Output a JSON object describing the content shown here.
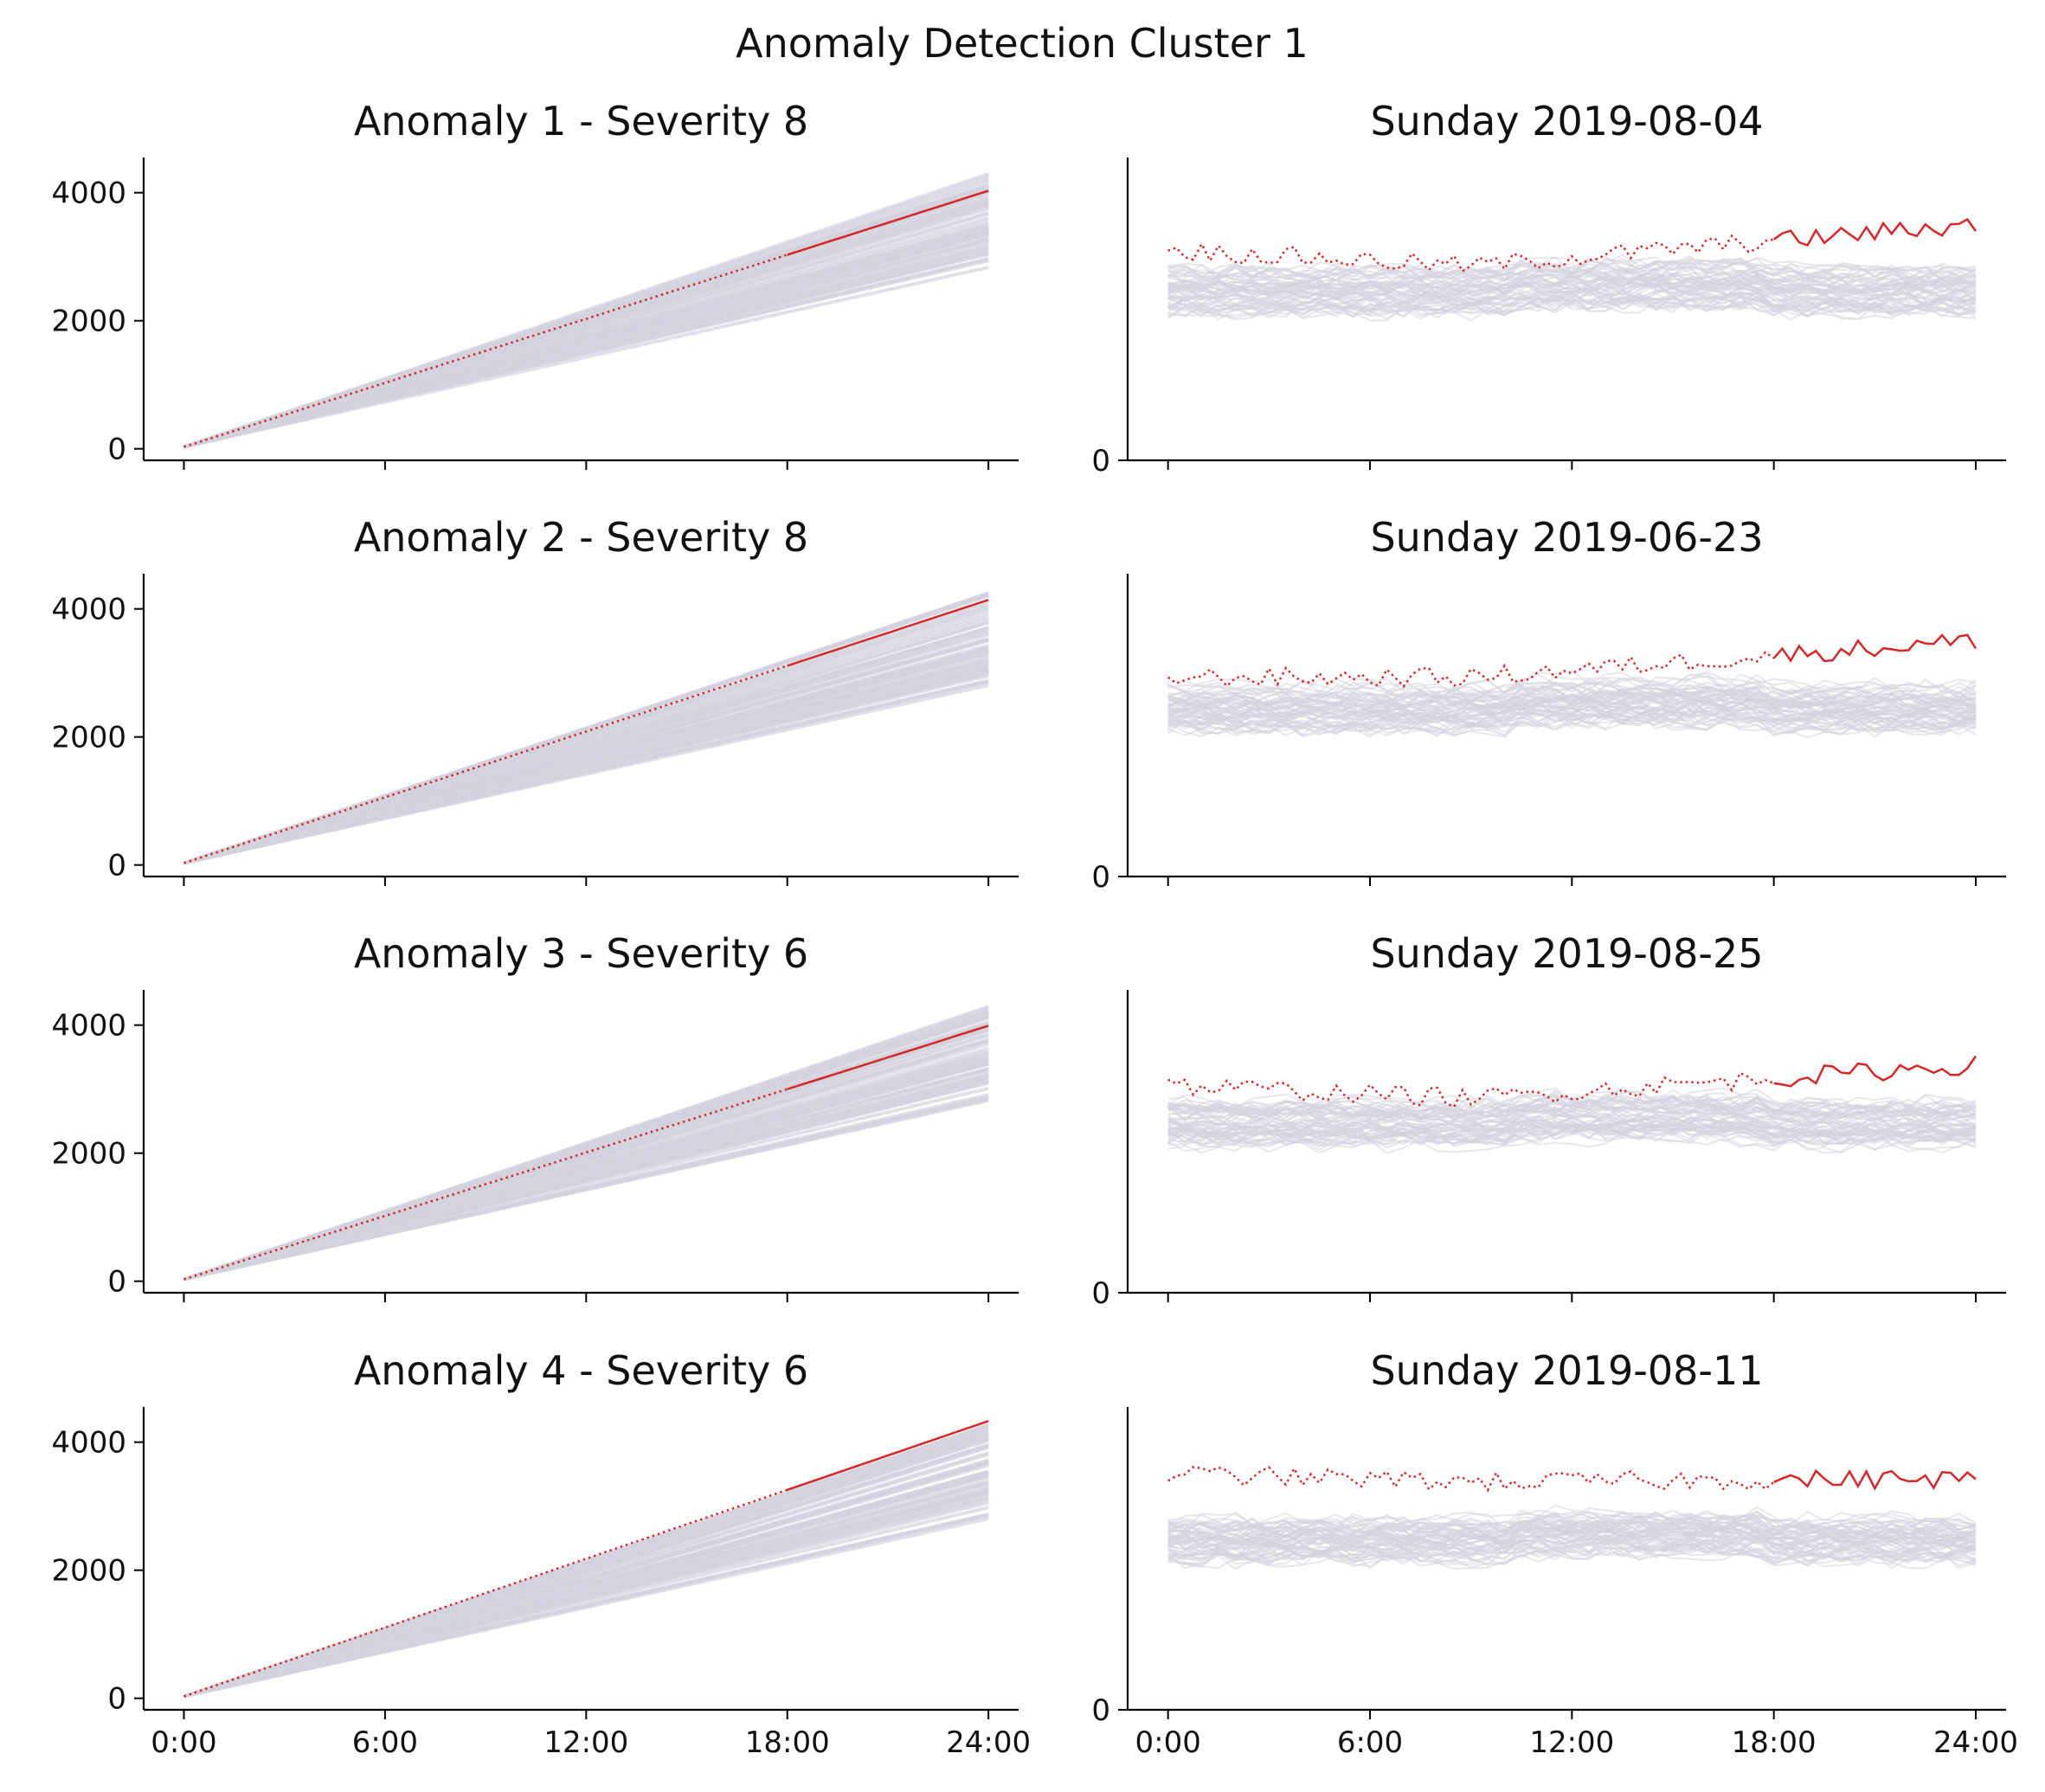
{
  "suptitle": "Anomaly Detection Cluster 1",
  "colors": {
    "anomaly": "#d62728",
    "background_series": "#d3d3de",
    "axis": "#000000"
  },
  "chart_data": [
    {
      "type": "line",
      "title": "Anomaly 1 - Severity 8",
      "x_ticks": [
        "0:00",
        "6:00",
        "12:00",
        "18:00",
        "24:00"
      ],
      "y_ticks": [
        "0",
        "2000",
        "4000"
      ],
      "ylim": [
        -180,
        4550
      ],
      "xlim": [
        -1.2,
        24.9
      ],
      "cumulative": true,
      "anomaly_series": {
        "name": "",
        "start": 30,
        "end": 4030,
        "split_hour": 18
      },
      "background_band": {
        "low_end": 2800,
        "high_end": 4300,
        "count": 60
      }
    },
    {
      "type": "line",
      "title": "Sunday 2019-08-04",
      "x_ticks": [
        "0:00",
        "6:00",
        "12:00",
        "18:00",
        "24:00"
      ],
      "y_ticks": [
        "0"
      ],
      "ylim": [
        0,
        190
      ],
      "xlim": [
        -1.2,
        24.9
      ],
      "hourly": true,
      "anomaly_series": {
        "name": "",
        "level_start": 132,
        "level_mid": 122,
        "level_end": 148,
        "split_hour": 18
      },
      "background_band": {
        "low": 92,
        "high": 120,
        "count": 60
      }
    },
    {
      "type": "line",
      "title": "Anomaly 2 - Severity 8",
      "x_ticks": [
        "0:00",
        "6:00",
        "12:00",
        "18:00",
        "24:00"
      ],
      "y_ticks": [
        "0",
        "2000",
        "4000"
      ],
      "ylim": [
        -180,
        4550
      ],
      "xlim": [
        -1.2,
        24.9
      ],
      "cumulative": true,
      "anomaly_series": {
        "name": "",
        "start": 30,
        "end": 4140,
        "split_hour": 18
      },
      "background_band": {
        "low_end": 2800,
        "high_end": 4300,
        "count": 60
      }
    },
    {
      "type": "line",
      "title": "Sunday 2019-06-23",
      "x_ticks": [
        "0:00",
        "6:00",
        "12:00",
        "18:00",
        "24:00"
      ],
      "y_ticks": [
        "0"
      ],
      "ylim": [
        0,
        190
      ],
      "xlim": [
        -1.2,
        24.9
      ],
      "hourly": true,
      "anomaly_series": {
        "name": "",
        "level_start": 125,
        "level_mid": 125,
        "level_end": 148,
        "split_hour": 18
      },
      "background_band": {
        "low": 92,
        "high": 120,
        "count": 60
      }
    },
    {
      "type": "line",
      "title": "Anomaly 3 - Severity 6",
      "x_ticks": [
        "0:00",
        "6:00",
        "12:00",
        "18:00",
        "24:00"
      ],
      "y_ticks": [
        "0",
        "2000",
        "4000"
      ],
      "ylim": [
        -180,
        4550
      ],
      "xlim": [
        -1.2,
        24.9
      ],
      "cumulative": true,
      "anomaly_series": {
        "name": "",
        "start": 30,
        "end": 3990,
        "split_hour": 18
      },
      "background_band": {
        "low_end": 2800,
        "high_end": 4300,
        "count": 60
      }
    },
    {
      "type": "line",
      "title": "Sunday 2019-08-25",
      "x_ticks": [
        "0:00",
        "6:00",
        "12:00",
        "18:00",
        "24:00"
      ],
      "y_ticks": [
        "0"
      ],
      "ylim": [
        0,
        190
      ],
      "xlim": [
        -1.2,
        24.9
      ],
      "hourly": true,
      "anomaly_series": {
        "name": "",
        "level_start": 130,
        "level_mid": 122,
        "level_end": 143,
        "split_hour": 18
      },
      "background_band": {
        "low": 92,
        "high": 120,
        "count": 60
      }
    },
    {
      "type": "line",
      "title": "Anomaly 4 - Severity 6",
      "x_ticks": [
        "0:00",
        "6:00",
        "12:00",
        "18:00",
        "24:00"
      ],
      "y_ticks": [
        "0",
        "2000",
        "4000"
      ],
      "ylim": [
        -180,
        4550
      ],
      "xlim": [
        -1.2,
        24.9
      ],
      "cumulative": true,
      "anomaly_series": {
        "name": "",
        "start": 30,
        "end": 4330,
        "split_hour": 18
      },
      "background_band": {
        "low_end": 2800,
        "high_end": 4300,
        "count": 60
      }
    },
    {
      "type": "line",
      "title": "Sunday 2019-08-11",
      "x_ticks": [
        "0:00",
        "6:00",
        "12:00",
        "18:00",
        "24:00"
      ],
      "y_ticks": [
        "0"
      ],
      "ylim": [
        0,
        190
      ],
      "xlim": [
        -1.2,
        24.9
      ],
      "hourly": true,
      "anomaly_series": {
        "name": "",
        "level_start": 148,
        "level_mid": 143,
        "level_end": 145,
        "split_hour": 18
      },
      "background_band": {
        "low": 92,
        "high": 120,
        "count": 60
      }
    }
  ]
}
